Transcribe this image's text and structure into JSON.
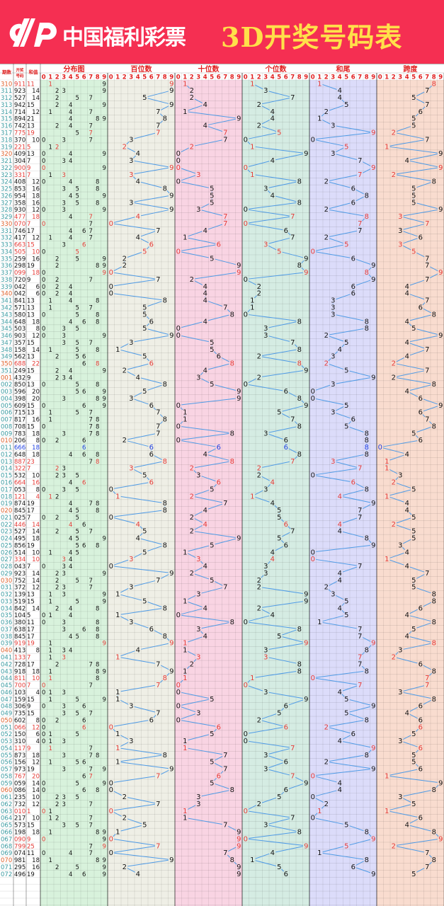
{
  "banner": {
    "logo_text": "中国福利彩票",
    "title": "3D开奖号码表",
    "bg_color": "#f52f52",
    "title_color": "#ffe04a"
  },
  "headers": {
    "period": "期数",
    "number": "开奖号码",
    "sum": "和值",
    "sections": [
      "分布图",
      "百位数",
      "十位数",
      "个位数",
      "和尾",
      "跨度"
    ],
    "digits": [
      "0",
      "1",
      "2",
      "3",
      "4",
      "5",
      "6",
      "7",
      "8",
      "9"
    ]
  },
  "colors": {
    "section_bg": [
      "#d8f2dc",
      "#efefe6",
      "#f9d4e3",
      "#d5ece3",
      "#dcdcfa",
      "#f9dccf"
    ],
    "line": "#4f9be6",
    "pair": "#e53935",
    "triple": "#1f3fe0",
    "normal": "#111111",
    "period_tens": "#e0602a",
    "period_normal": "#3a9aa0",
    "header_red": "#e02020"
  },
  "rows": [
    [
      "310",
      "911",
      "11"
    ],
    [
      "311",
      "923",
      "14"
    ],
    [
      "312",
      "527",
      "14"
    ],
    [
      "313",
      "942",
      "15"
    ],
    [
      "314",
      "714",
      "12"
    ],
    [
      "315",
      "894",
      "21"
    ],
    [
      "316",
      "742",
      "13"
    ],
    [
      "317",
      "775",
      "19"
    ],
    [
      "318",
      "370",
      "10"
    ],
    [
      "319",
      "221",
      "5"
    ],
    [
      "320",
      "409",
      "13"
    ],
    [
      "321",
      "304",
      "7"
    ],
    [
      "322",
      "900",
      "9"
    ],
    [
      "323",
      "331",
      "7"
    ],
    [
      "324",
      "408",
      "12"
    ],
    [
      "325",
      "853",
      "16"
    ],
    [
      "326",
      "954",
      "18"
    ],
    [
      "327",
      "358",
      "16"
    ],
    [
      "328",
      "930",
      "12"
    ],
    [
      "329",
      "477",
      "18"
    ],
    [
      "330",
      "070",
      "7"
    ],
    [
      "331",
      "746",
      "17"
    ],
    [
      "332",
      "417",
      "12"
    ],
    [
      "333",
      "663",
      "15"
    ],
    [
      "334",
      "505",
      "10"
    ],
    [
      "335",
      "259",
      "16"
    ],
    [
      "336",
      "298",
      "19"
    ],
    [
      "337",
      "099",
      "18"
    ],
    [
      "338",
      "720",
      "9"
    ],
    [
      "339",
      "042",
      "6"
    ],
    [
      "340",
      "042",
      "6"
    ],
    [
      "341",
      "841",
      "13"
    ],
    [
      "342",
      "571",
      "13"
    ],
    [
      "343",
      "580",
      "13"
    ],
    [
      "344",
      "648",
      "18"
    ],
    [
      "345",
      "503",
      "8"
    ],
    [
      "346",
      "903",
      "12"
    ],
    [
      "347",
      "357",
      "15"
    ],
    [
      "348",
      "158",
      "14"
    ],
    [
      "349",
      "562",
      "13"
    ],
    [
      "350",
      "688",
      "22"
    ],
    [
      "351",
      "249",
      "15"
    ],
    [
      "001",
      "432",
      "9"
    ],
    [
      "002",
      "850",
      "13"
    ],
    [
      "003",
      "596",
      "20"
    ],
    [
      "004",
      "398",
      "20"
    ],
    [
      "005",
      "609",
      "15"
    ],
    [
      "006",
      "715",
      "13"
    ],
    [
      "007",
      "817",
      "16"
    ],
    [
      "008",
      "708",
      "15"
    ],
    [
      "009",
      "783",
      "18"
    ],
    [
      "010",
      "206",
      "8"
    ],
    [
      "011",
      "666",
      "18"
    ],
    [
      "012",
      "648",
      "18"
    ],
    [
      "013",
      "887",
      "23"
    ],
    [
      "014",
      "322",
      "7"
    ],
    [
      "015",
      "532",
      "10"
    ],
    [
      "016",
      "664",
      "16"
    ],
    [
      "017",
      "053",
      "8"
    ],
    [
      "018",
      "121",
      "4"
    ],
    [
      "019",
      "874",
      "19"
    ],
    [
      "020",
      "845",
      "17"
    ],
    [
      "021",
      "025",
      "7"
    ],
    [
      "022",
      "446",
      "14"
    ],
    [
      "023",
      "527",
      "14"
    ],
    [
      "024",
      "495",
      "18"
    ],
    [
      "025",
      "856",
      "19"
    ],
    [
      "026",
      "514",
      "10"
    ],
    [
      "027",
      "334",
      "10"
    ],
    [
      "028",
      "043",
      "7"
    ],
    [
      "029",
      "923",
      "14"
    ],
    [
      "030",
      "752",
      "14"
    ],
    [
      "031",
      "372",
      "12"
    ],
    [
      "032",
      "139",
      "13"
    ],
    [
      "033",
      "519",
      "15"
    ],
    [
      "034",
      "842",
      "14"
    ],
    [
      "035",
      "104",
      "5"
    ],
    [
      "036",
      "380",
      "11"
    ],
    [
      "037",
      "638",
      "17"
    ],
    [
      "038",
      "845",
      "17"
    ],
    [
      "039",
      "919",
      "19"
    ],
    [
      "040",
      "413",
      "8"
    ],
    [
      "041",
      "133",
      "7"
    ],
    [
      "042",
      "728",
      "17"
    ],
    [
      "043",
      "918",
      "18"
    ],
    [
      "044",
      "811",
      "10"
    ],
    [
      "045",
      "700",
      "7"
    ],
    [
      "046",
      "103",
      "4"
    ],
    [
      "047",
      "159",
      "15"
    ],
    [
      "048",
      "306",
      "9"
    ],
    [
      "049",
      "735",
      "15"
    ],
    [
      "050",
      "602",
      "8"
    ],
    [
      "051",
      "066",
      "12"
    ],
    [
      "052",
      "150",
      "6"
    ],
    [
      "053",
      "310",
      "4"
    ],
    [
      "054",
      "117",
      "9"
    ],
    [
      "055",
      "873",
      "18"
    ],
    [
      "056",
      "156",
      "12"
    ],
    [
      "057",
      "973",
      "19"
    ],
    [
      "058",
      "767",
      "20"
    ],
    [
      "059",
      "059",
      "14"
    ],
    [
      "060",
      "086",
      "14"
    ],
    [
      "061",
      "235",
      "10"
    ],
    [
      "062",
      "732",
      "12"
    ],
    [
      "063",
      "010",
      "1"
    ],
    [
      "064",
      "217",
      "10"
    ],
    [
      "065",
      "573",
      "15"
    ],
    [
      "066",
      "198",
      "18"
    ],
    [
      "067",
      "090",
      "9"
    ],
    [
      "068",
      "799",
      "25"
    ],
    [
      "069",
      "074",
      "11"
    ],
    [
      "070",
      "981",
      "18"
    ],
    [
      "071",
      "295",
      "16"
    ],
    [
      "072",
      "496",
      "19"
    ]
  ]
}
